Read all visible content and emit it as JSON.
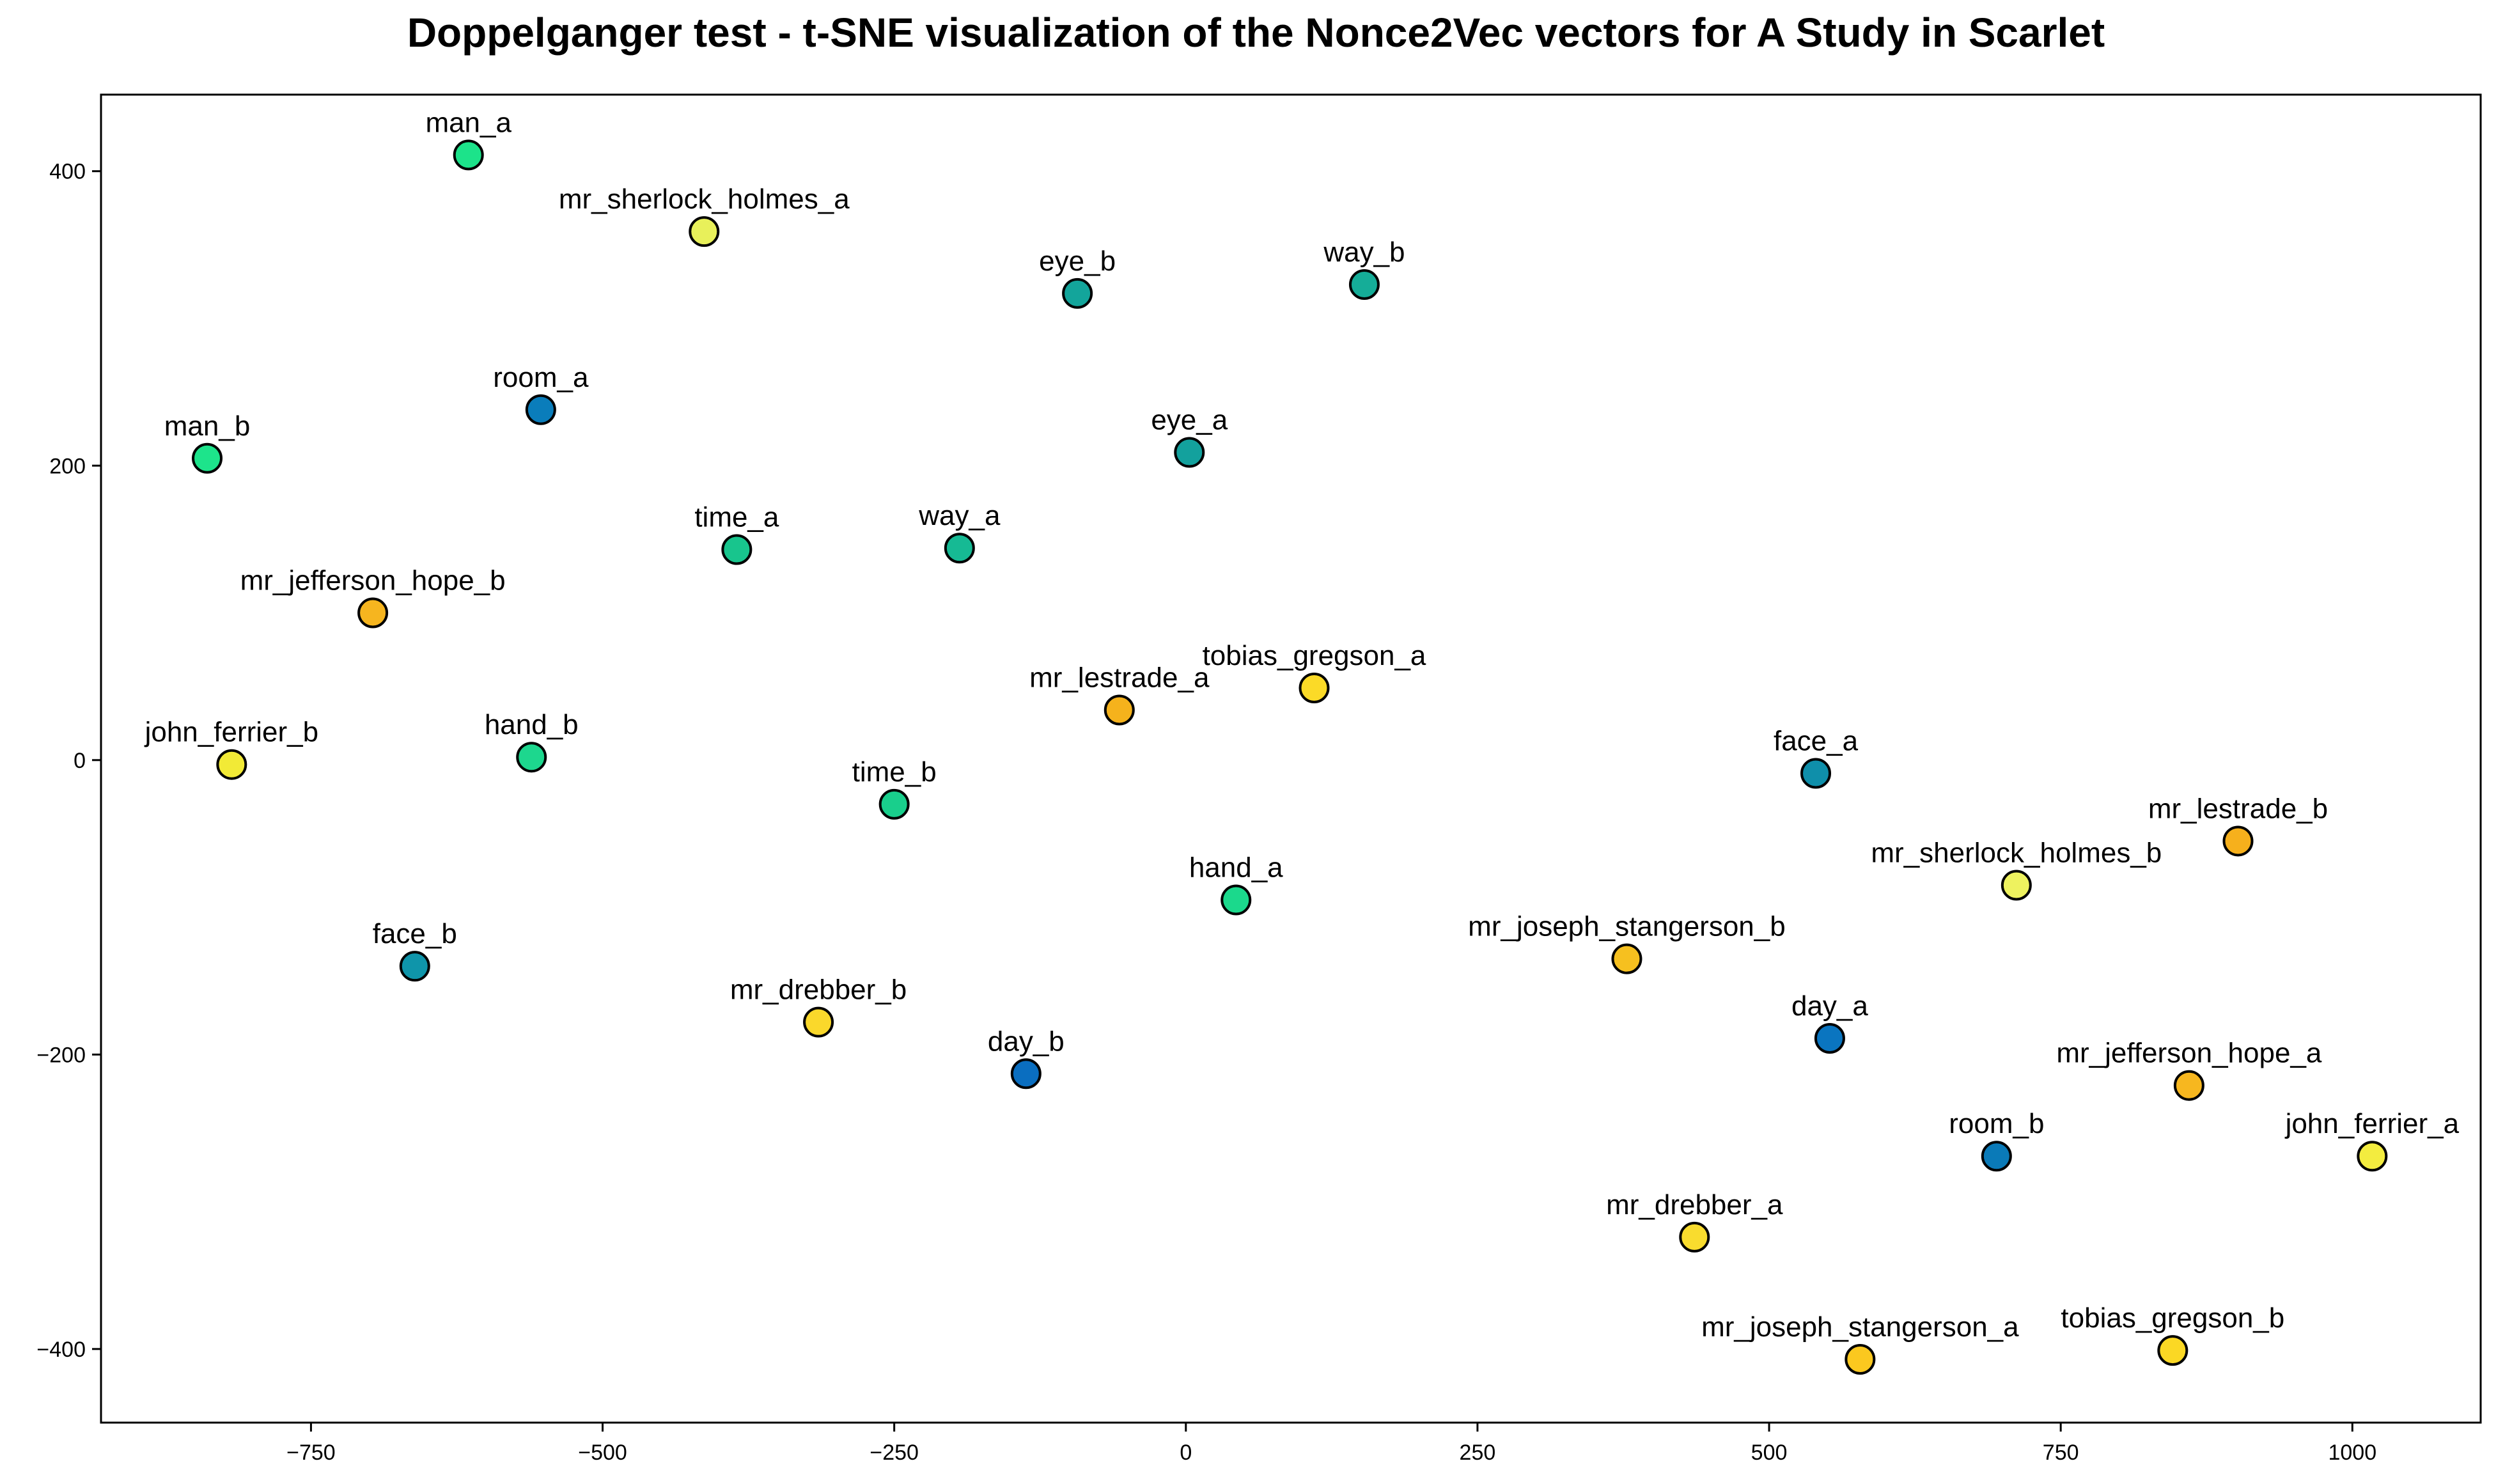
{
  "chart_data": {
    "type": "scatter",
    "title": "Doppelganger test - t-SNE visualization of the Nonce2Vec vectors for A Study in Scarlet",
    "xlabel": "",
    "ylabel": "",
    "xlim": [
      -930,
      1110
    ],
    "ylim": [
      -450,
      452
    ],
    "xticks": [
      -750,
      -500,
      -250,
      0,
      250,
      500,
      750,
      1000
    ],
    "yticks": [
      400,
      200,
      0,
      -200,
      -400
    ],
    "grid": false,
    "legend": "none",
    "marker_edge_color": "#000000",
    "points": [
      {
        "label": "man_a",
        "x": -615,
        "y": 411,
        "color": "#1ce38a"
      },
      {
        "label": "mr_sherlock_holmes_a",
        "x": -413,
        "y": 359,
        "color": "#e8f05a"
      },
      {
        "label": "eye_b",
        "x": -93,
        "y": 317,
        "color": "#13a59b"
      },
      {
        "label": "way_b",
        "x": 153,
        "y": 323,
        "color": "#15ad98"
      },
      {
        "label": "room_a",
        "x": -553,
        "y": 238,
        "color": "#0a7dbb"
      },
      {
        "label": "man_b",
        "x": -839,
        "y": 205,
        "color": "#1de48b"
      },
      {
        "label": "eye_a",
        "x": 3,
        "y": 209,
        "color": "#13a19d"
      },
      {
        "label": "time_a",
        "x": -385,
        "y": 143,
        "color": "#18c58d"
      },
      {
        "label": "way_a",
        "x": -194,
        "y": 144,
        "color": "#16ba94"
      },
      {
        "label": "mr_jefferson_hope_b",
        "x": -697,
        "y": 100,
        "color": "#f6b51f"
      },
      {
        "label": "mr_lestrade_a",
        "x": -57,
        "y": 34,
        "color": "#f5b21c"
      },
      {
        "label": "tobias_gregson_a",
        "x": 110,
        "y": 49,
        "color": "#fbda27"
      },
      {
        "label": "john_ferrier_b",
        "x": -818,
        "y": -3,
        "color": "#f2ea36"
      },
      {
        "label": "hand_b",
        "x": -561,
        "y": 2,
        "color": "#1dd78e"
      },
      {
        "label": "time_b",
        "x": -250,
        "y": -30,
        "color": "#19cf8c"
      },
      {
        "label": "face_a",
        "x": 540,
        "y": -9,
        "color": "#0f8faa"
      },
      {
        "label": "mr_lestrade_b",
        "x": 902,
        "y": -55,
        "color": "#f6b01c"
      },
      {
        "label": "mr_sherlock_holmes_b",
        "x": 712,
        "y": -85,
        "color": "#eef25f"
      },
      {
        "label": "hand_a",
        "x": 43,
        "y": -95,
        "color": "#1bd98c"
      },
      {
        "label": "mr_joseph_stangerson_b",
        "x": 378,
        "y": -135,
        "color": "#f6c01f"
      },
      {
        "label": "face_b",
        "x": -661,
        "y": -140,
        "color": "#0f95aa"
      },
      {
        "label": "mr_drebber_b",
        "x": -315,
        "y": -178,
        "color": "#fad82b"
      },
      {
        "label": "day_b",
        "x": -137,
        "y": -213,
        "color": "#0a6ec0"
      },
      {
        "label": "day_a",
        "x": 552,
        "y": -189,
        "color": "#0a75c0"
      },
      {
        "label": "mr_jefferson_hope_a",
        "x": 860,
        "y": -221,
        "color": "#f7b71f"
      },
      {
        "label": "room_b",
        "x": 695,
        "y": -269,
        "color": "#0a7ab8"
      },
      {
        "label": "john_ferrier_a",
        "x": 1017,
        "y": -269,
        "color": "#f3ec3f"
      },
      {
        "label": "mr_drebber_a",
        "x": 436,
        "y": -324,
        "color": "#f9dc2e"
      },
      {
        "label": "mr_joseph_stangerson_a",
        "x": 578,
        "y": -407,
        "color": "#fbc81f"
      },
      {
        "label": "tobias_gregson_b",
        "x": 846,
        "y": -401,
        "color": "#fbd824"
      }
    ]
  }
}
